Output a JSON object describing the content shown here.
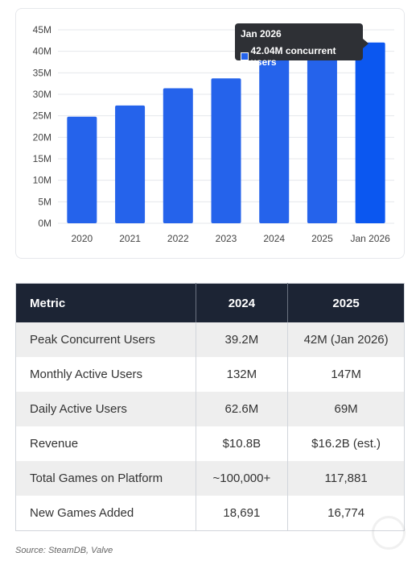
{
  "chart_data": {
    "type": "bar",
    "categories": [
      "2020",
      "2021",
      "2022",
      "2023",
      "2024",
      "2025",
      "Jan 2026"
    ],
    "series": [
      {
        "name": "concurrent users",
        "values": [
          24.8,
          27.4,
          31.4,
          33.7,
          39.2,
          41.6,
          42.04
        ]
      }
    ],
    "ylim": [
      0,
      45
    ],
    "yticks": [
      "0M",
      "5M",
      "10M",
      "15M",
      "20M",
      "25M",
      "30M",
      "35M",
      "40M",
      "45M"
    ],
    "ytick_values": [
      0,
      5,
      10,
      15,
      20,
      25,
      30,
      35,
      40,
      45
    ],
    "grid": true,
    "highlighted_index": 6,
    "colors": {
      "bar": "#2563eb",
      "bar_highlight": "#0b57f0",
      "grid": "#e5e7eb"
    },
    "tooltip": {
      "title": "Jan 2026",
      "value_text": "42.04M concurrent users"
    }
  },
  "table": {
    "headers": [
      "Metric",
      "2024",
      "2025"
    ],
    "rows": [
      [
        "Peak Concurrent Users",
        "39.2M",
        "42M (Jan 2026)"
      ],
      [
        "Monthly Active Users",
        "132M",
        "147M"
      ],
      [
        "Daily Active Users",
        "62.6M",
        "69M"
      ],
      [
        "Revenue",
        "$10.8B",
        "$16.2B (est.)"
      ],
      [
        "Total Games on Platform",
        "~100,000+",
        "117,881"
      ],
      [
        "New Games Added",
        "18,691",
        "16,774"
      ]
    ]
  },
  "source": "Source: SteamDB, Valve",
  "watermark": {
    "icon": "game-logo-icon"
  }
}
